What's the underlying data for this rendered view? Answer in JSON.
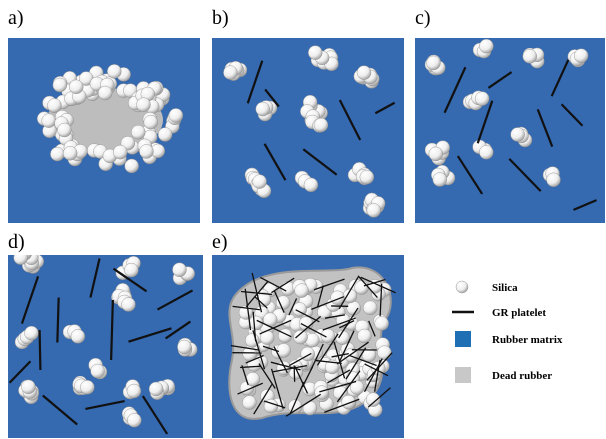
{
  "panels": [
    {
      "label": "a)"
    },
    {
      "label": "b)"
    },
    {
      "label": "c)"
    },
    {
      "label": "d)"
    },
    {
      "label": "e)"
    }
  ],
  "legend": [
    {
      "label": "Silica"
    },
    {
      "label": "GR platelet"
    },
    {
      "label": "Rubber matrix"
    },
    {
      "label": "Dead rubber"
    }
  ]
}
